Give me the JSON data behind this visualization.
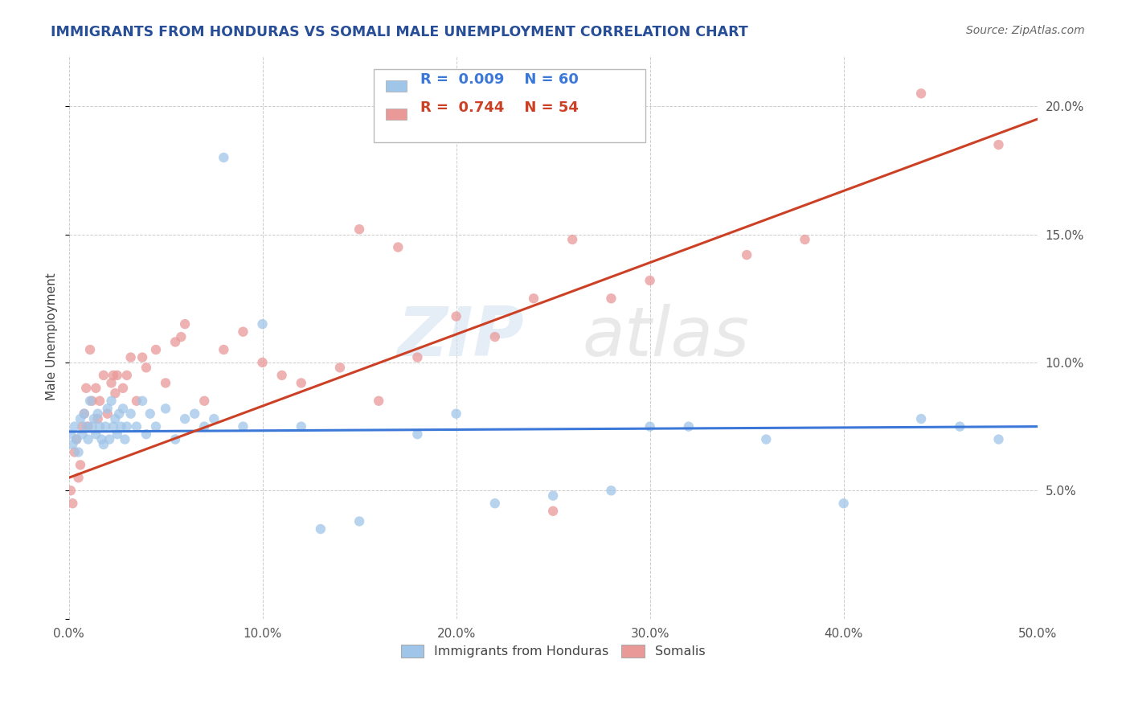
{
  "title": "IMMIGRANTS FROM HONDURAS VS SOMALI MALE UNEMPLOYMENT CORRELATION CHART",
  "source_text": "Source: ZipAtlas.com",
  "ylabel": "Male Unemployment",
  "watermark_zip": "ZIP",
  "watermark_atlas": "atlas",
  "blue_color": "#9fc5e8",
  "pink_color": "#ea9999",
  "blue_line_color": "#3c78d8",
  "pink_line_color": "#cc4125",
  "title_color": "#274e96",
  "source_color": "#666666",
  "grid_color": "#cccccc",
  "bg_color": "#ffffff",
  "legend_r1_label": "R = ",
  "legend_r1_val": "0.009",
  "legend_n1_label": "N = ",
  "legend_n1_val": "60",
  "legend_r2_val": "0.744",
  "legend_n2_val": "54",
  "blue_scatter_x": [
    0.1,
    0.2,
    0.3,
    0.4,
    0.5,
    0.6,
    0.7,
    0.8,
    0.9,
    1.0,
    1.1,
    1.2,
    1.3,
    1.4,
    1.5,
    1.6,
    1.7,
    1.8,
    1.9,
    2.0,
    2.1,
    2.2,
    2.3,
    2.4,
    2.5,
    2.6,
    2.7,
    2.8,
    2.9,
    3.0,
    3.2,
    3.5,
    3.8,
    4.0,
    4.2,
    4.5,
    5.0,
    5.5,
    6.0,
    6.5,
    7.0,
    7.5,
    8.0,
    9.0,
    10.0,
    13.0,
    15.0,
    18.0,
    20.0,
    22.0,
    25.0,
    28.0,
    32.0,
    36.0,
    40.0,
    44.0,
    46.0,
    48.0,
    12.0,
    30.0
  ],
  "blue_scatter_y": [
    7.2,
    6.8,
    7.5,
    7.0,
    6.5,
    7.8,
    7.2,
    8.0,
    7.5,
    7.0,
    8.5,
    7.5,
    7.8,
    7.2,
    8.0,
    7.5,
    7.0,
    6.8,
    7.5,
    8.2,
    7.0,
    8.5,
    7.5,
    7.8,
    7.2,
    8.0,
    7.5,
    8.2,
    7.0,
    7.5,
    8.0,
    7.5,
    8.5,
    7.2,
    8.0,
    7.5,
    8.2,
    7.0,
    7.8,
    8.0,
    7.5,
    7.8,
    18.0,
    7.5,
    11.5,
    3.5,
    3.8,
    7.2,
    8.0,
    4.5,
    4.8,
    5.0,
    7.5,
    7.0,
    4.5,
    7.8,
    7.5,
    7.0,
    7.5,
    7.5
  ],
  "pink_scatter_x": [
    0.1,
    0.2,
    0.3,
    0.4,
    0.5,
    0.6,
    0.7,
    0.8,
    0.9,
    1.0,
    1.1,
    1.2,
    1.4,
    1.5,
    1.6,
    1.8,
    2.0,
    2.2,
    2.4,
    2.5,
    2.8,
    3.0,
    3.2,
    3.5,
    4.0,
    4.5,
    5.0,
    5.5,
    6.0,
    7.0,
    8.0,
    9.0,
    10.0,
    11.0,
    12.0,
    14.0,
    16.0,
    17.0,
    18.0,
    20.0,
    22.0,
    24.0,
    26.0,
    28.0,
    30.0,
    35.0,
    38.0,
    44.0,
    2.3,
    3.8,
    5.8,
    15.0,
    25.0,
    48.0
  ],
  "pink_scatter_y": [
    5.0,
    4.5,
    6.5,
    7.0,
    5.5,
    6.0,
    7.5,
    8.0,
    9.0,
    7.5,
    10.5,
    8.5,
    9.0,
    7.8,
    8.5,
    9.5,
    8.0,
    9.2,
    8.8,
    9.5,
    9.0,
    9.5,
    10.2,
    8.5,
    9.8,
    10.5,
    9.2,
    10.8,
    11.5,
    8.5,
    10.5,
    11.2,
    10.0,
    9.5,
    9.2,
    9.8,
    8.5,
    14.5,
    10.2,
    11.8,
    11.0,
    12.5,
    14.8,
    12.5,
    13.2,
    14.2,
    14.8,
    20.5,
    9.5,
    10.2,
    11.0,
    15.2,
    4.2,
    18.5
  ],
  "blue_trend_x": [
    0.0,
    50.0
  ],
  "blue_trend_y": [
    7.3,
    7.5
  ],
  "pink_trend_x": [
    0.0,
    50.0
  ],
  "pink_trend_y": [
    5.5,
    19.5
  ],
  "xlim": [
    0,
    50
  ],
  "ylim": [
    0,
    22
  ],
  "xticks": [
    0,
    10,
    20,
    30,
    40,
    50
  ],
  "xtick_labels": [
    "0.0%",
    "10.0%",
    "20.0%",
    "30.0%",
    "40.0%",
    "50.0%"
  ],
  "yticks_right": [
    5,
    10,
    15,
    20
  ],
  "ytick_labels_right": [
    "5.0%",
    "10.0%",
    "15.0%",
    "20.0%"
  ],
  "legend_label_blue": "Immigrants from Honduras",
  "legend_label_pink": "Somalis"
}
